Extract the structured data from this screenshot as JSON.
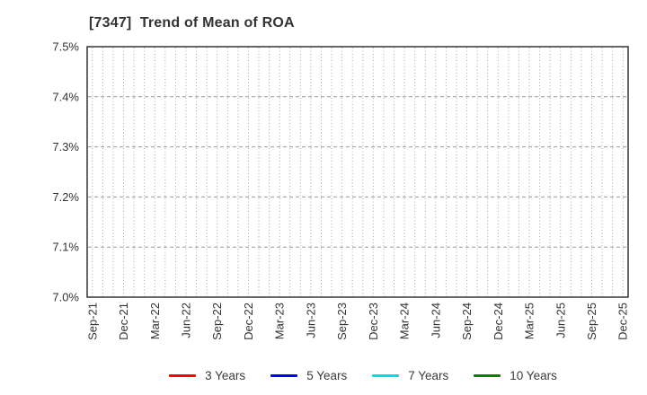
{
  "chart_data": {
    "type": "line",
    "title": "[7347]  Trend of Mean of ROA",
    "x_axis": {
      "tick_labels": [
        "Sep-21",
        "Dec-21",
        "Mar-22",
        "Jun-22",
        "Sep-22",
        "Dec-22",
        "Mar-23",
        "Jun-23",
        "Sep-23",
        "Dec-23",
        "Mar-24",
        "Jun-24",
        "Sep-24",
        "Dec-24",
        "Mar-25",
        "Jun-25",
        "Sep-25",
        "Dec-25"
      ],
      "months_per_tick": 3,
      "total_months": 52,
      "range": [
        "Sep-21",
        "Dec-25"
      ]
    },
    "y_axis": {
      "tick_labels": [
        "7.0%",
        "7.1%",
        "7.2%",
        "7.3%",
        "7.4%",
        "7.5%"
      ],
      "min": 7.0,
      "max": 7.5,
      "unit": "%"
    },
    "grid": {
      "vertical": "dotted, one per month",
      "horizontal": "dashed, every 0.1%"
    },
    "series": [
      {
        "name": "3 Years",
        "color": "#ff0000",
        "values": []
      },
      {
        "name": "5 Years",
        "color": "#0000ff",
        "values": []
      },
      {
        "name": "7 Years",
        "color": "#00dddd",
        "values": []
      },
      {
        "name": "10 Years",
        "color": "#008000",
        "values": []
      }
    ],
    "legend_position": "bottom",
    "colors": {
      "axis_border": "#333333",
      "grid_vertical": "#a6a6a6",
      "grid_horizontal": "#999999",
      "tick_text": "#333333",
      "background": "#ffffff"
    }
  }
}
